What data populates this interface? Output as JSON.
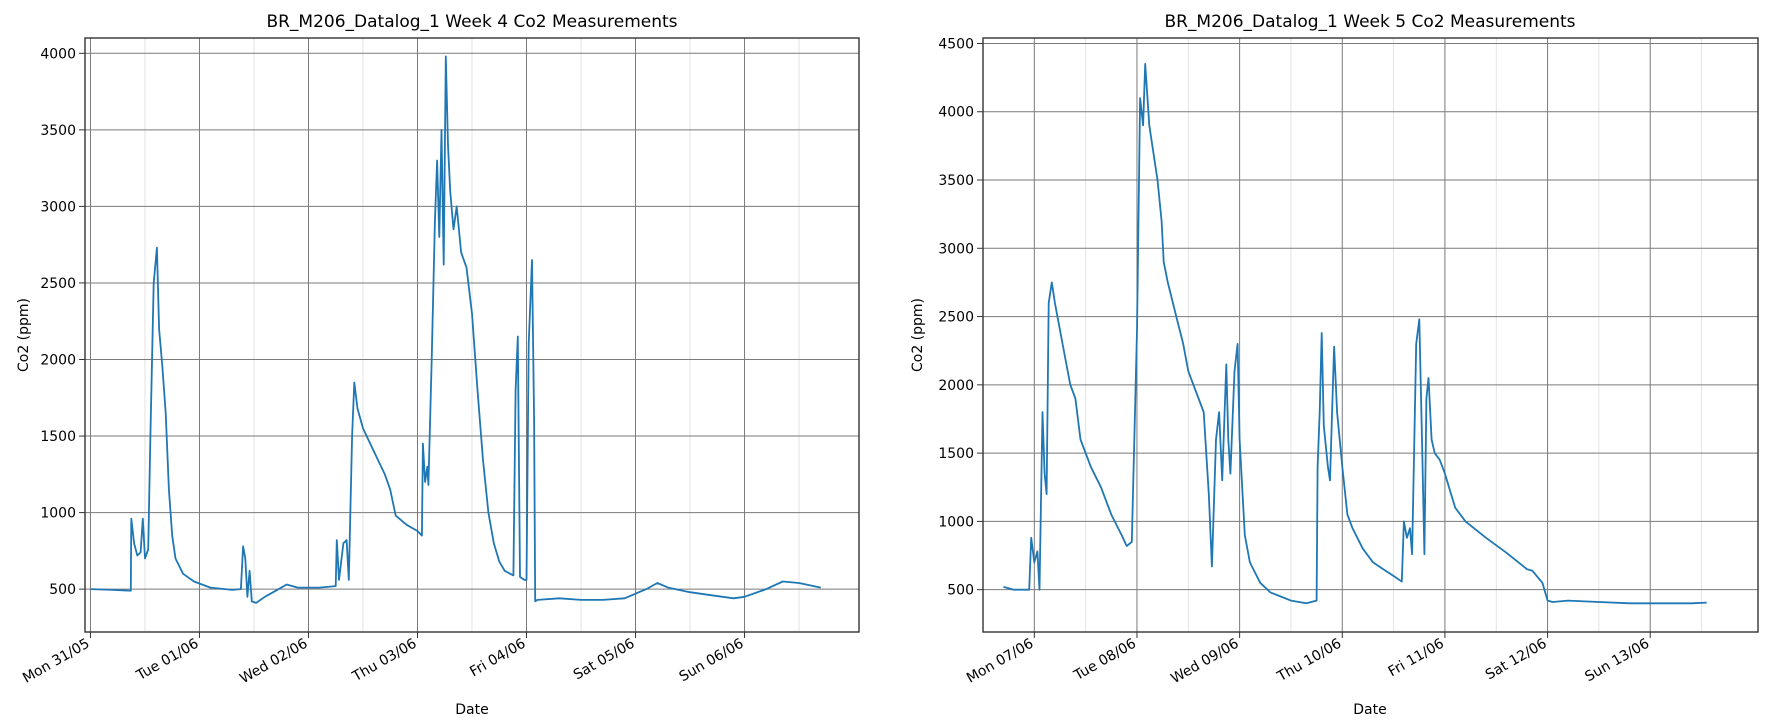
{
  "chart_data": [
    {
      "type": "line",
      "title": "BR_M206_Datalog_1 Week 4 Co2 Measurements",
      "xlabel": "Date",
      "ylabel": "Co2 (ppm)",
      "x_axis": "day index (0 = Mon 31/05 00:00)",
      "xlim": [
        -0.05,
        7.05
      ],
      "ylim": [
        220,
        4100
      ],
      "yticks": [
        500,
        1000,
        1500,
        2000,
        2500,
        3000,
        3500,
        4000
      ],
      "ytick_labels": [
        "500",
        "1000",
        "1500",
        "2000",
        "2500",
        "3000",
        "3500",
        "4000"
      ],
      "xticks": [
        0,
        1,
        2,
        3,
        4,
        5,
        6
      ],
      "xtick_labels": [
        "Mon 31/05",
        "Tue 01/06",
        "Wed 02/06",
        "Thu 03/06",
        "Fri 04/06",
        "Sat 05/06",
        "Sun 06/06"
      ],
      "grid": true,
      "series": [
        {
          "color": "#1f77b4",
          "points": [
            [
              0.0,
              500
            ],
            [
              0.2,
              495
            ],
            [
              0.37,
              490
            ],
            [
              0.375,
              960
            ],
            [
              0.4,
              800
            ],
            [
              0.43,
              720
            ],
            [
              0.46,
              740
            ],
            [
              0.48,
              960
            ],
            [
              0.5,
              700
            ],
            [
              0.53,
              760
            ],
            [
              0.55,
              1500
            ],
            [
              0.58,
              2500
            ],
            [
              0.61,
              2730
            ],
            [
              0.63,
              2200
            ],
            [
              0.66,
              1950
            ],
            [
              0.69,
              1650
            ],
            [
              0.72,
              1150
            ],
            [
              0.75,
              850
            ],
            [
              0.78,
              700
            ],
            [
              0.85,
              600
            ],
            [
              0.95,
              550
            ],
            [
              1.1,
              510
            ],
            [
              1.3,
              495
            ],
            [
              1.38,
              500
            ],
            [
              1.4,
              780
            ],
            [
              1.42,
              700
            ],
            [
              1.44,
              450
            ],
            [
              1.46,
              620
            ],
            [
              1.48,
              420
            ],
            [
              1.52,
              410
            ],
            [
              1.6,
              450
            ],
            [
              1.7,
              490
            ],
            [
              1.8,
              530
            ],
            [
              1.9,
              510
            ],
            [
              2.0,
              510
            ],
            [
              2.1,
              510
            ],
            [
              2.25,
              520
            ],
            [
              2.26,
              820
            ],
            [
              2.28,
              560
            ],
            [
              2.32,
              800
            ],
            [
              2.35,
              820
            ],
            [
              2.37,
              560
            ],
            [
              2.4,
              1500
            ],
            [
              2.42,
              1850
            ],
            [
              2.45,
              1680
            ],
            [
              2.5,
              1550
            ],
            [
              2.6,
              1400
            ],
            [
              2.7,
              1250
            ],
            [
              2.75,
              1150
            ],
            [
              2.8,
              980
            ],
            [
              2.9,
              920
            ],
            [
              3.0,
              880
            ],
            [
              3.04,
              850
            ],
            [
              3.05,
              1450
            ],
            [
              3.07,
              1200
            ],
            [
              3.09,
              1300
            ],
            [
              3.1,
              1180
            ],
            [
              3.13,
              2000
            ],
            [
              3.16,
              2900
            ],
            [
              3.18,
              3300
            ],
            [
              3.2,
              2800
            ],
            [
              3.22,
              3500
            ],
            [
              3.24,
              2620
            ],
            [
              3.26,
              3980
            ],
            [
              3.28,
              3400
            ],
            [
              3.3,
              3100
            ],
            [
              3.33,
              2850
            ],
            [
              3.36,
              3000
            ],
            [
              3.4,
              2700
            ],
            [
              3.45,
              2600
            ],
            [
              3.5,
              2300
            ],
            [
              3.55,
              1800
            ],
            [
              3.6,
              1350
            ],
            [
              3.65,
              1000
            ],
            [
              3.7,
              800
            ],
            [
              3.75,
              680
            ],
            [
              3.8,
              620
            ],
            [
              3.85,
              600
            ],
            [
              3.88,
              590
            ],
            [
              3.9,
              1800
            ],
            [
              3.92,
              2150
            ],
            [
              3.94,
              580
            ],
            [
              3.98,
              560
            ],
            [
              4.0,
              560
            ],
            [
              4.02,
              2100
            ],
            [
              4.05,
              2650
            ],
            [
              4.07,
              1600
            ],
            [
              4.08,
              420
            ],
            [
              4.1,
              430
            ],
            [
              4.3,
              440
            ],
            [
              4.5,
              430
            ],
            [
              4.7,
              430
            ],
            [
              4.9,
              440
            ],
            [
              5.1,
              500
            ],
            [
              5.2,
              540
            ],
            [
              5.3,
              510
            ],
            [
              5.5,
              480
            ],
            [
              5.7,
              460
            ],
            [
              5.9,
              440
            ],
            [
              6.0,
              450
            ],
            [
              6.2,
              500
            ],
            [
              6.35,
              550
            ],
            [
              6.5,
              540
            ],
            [
              6.7,
              510
            ]
          ]
        }
      ]
    },
    {
      "type": "line",
      "title": "BR_M206_Datalog_1 Week 5 Co2 Measurements",
      "xlabel": "Date",
      "ylabel": "Co2 (ppm)",
      "x_axis": "day index (0 = Mon 07/06 00:00)",
      "xlim": [
        -0.5,
        7.05
      ],
      "ylim": [
        190,
        4540
      ],
      "yticks": [
        500,
        1000,
        1500,
        2000,
        2500,
        3000,
        3500,
        4000,
        4500
      ],
      "ytick_labels": [
        "500",
        "1000",
        "1500",
        "2000",
        "2500",
        "3000",
        "3500",
        "4000",
        "4500"
      ],
      "xticks": [
        0,
        1,
        2,
        3,
        4,
        5,
        6
      ],
      "xtick_labels": [
        "Mon 07/06",
        "Tue 08/06",
        "Wed 09/06",
        "Thu 10/06",
        "Fri 11/06",
        "Sat 12/06",
        "Sun 13/06"
      ],
      "grid": true,
      "series": [
        {
          "color": "#1f77b4",
          "points": [
            [
              -0.3,
              520
            ],
            [
              -0.2,
              500
            ],
            [
              -0.05,
              500
            ],
            [
              -0.03,
              880
            ],
            [
              0.0,
              700
            ],
            [
              0.03,
              780
            ],
            [
              0.05,
              500
            ],
            [
              0.08,
              1800
            ],
            [
              0.1,
              1350
            ],
            [
              0.12,
              1200
            ],
            [
              0.14,
              2600
            ],
            [
              0.17,
              2750
            ],
            [
              0.2,
              2600
            ],
            [
              0.25,
              2400
            ],
            [
              0.3,
              2200
            ],
            [
              0.35,
              2000
            ],
            [
              0.4,
              1900
            ],
            [
              0.45,
              1600
            ],
            [
              0.55,
              1400
            ],
            [
              0.65,
              1250
            ],
            [
              0.75,
              1050
            ],
            [
              0.85,
              900
            ],
            [
              0.9,
              820
            ],
            [
              0.95,
              850
            ],
            [
              1.0,
              2400
            ],
            [
              1.03,
              4100
            ],
            [
              1.06,
              3900
            ],
            [
              1.08,
              4350
            ],
            [
              1.12,
              3900
            ],
            [
              1.16,
              3700
            ],
            [
              1.2,
              3500
            ],
            [
              1.24,
              3200
            ],
            [
              1.26,
              2900
            ],
            [
              1.3,
              2750
            ],
            [
              1.35,
              2600
            ],
            [
              1.4,
              2450
            ],
            [
              1.45,
              2300
            ],
            [
              1.5,
              2100
            ],
            [
              1.55,
              2000
            ],
            [
              1.6,
              1900
            ],
            [
              1.65,
              1800
            ],
            [
              1.7,
              1200
            ],
            [
              1.73,
              670
            ],
            [
              1.77,
              1600
            ],
            [
              1.8,
              1800
            ],
            [
              1.83,
              1300
            ],
            [
              1.87,
              2150
            ],
            [
              1.89,
              1600
            ],
            [
              1.91,
              1350
            ],
            [
              1.95,
              2100
            ],
            [
              1.98,
              2300
            ],
            [
              2.0,
              1600
            ],
            [
              2.05,
              900
            ],
            [
              2.1,
              700
            ],
            [
              2.2,
              550
            ],
            [
              2.3,
              480
            ],
            [
              2.4,
              450
            ],
            [
              2.5,
              420
            ],
            [
              2.65,
              400
            ],
            [
              2.75,
              420
            ],
            [
              2.76,
              1400
            ],
            [
              2.78,
              1800
            ],
            [
              2.8,
              2380
            ],
            [
              2.82,
              1700
            ],
            [
              2.86,
              1400
            ],
            [
              2.88,
              1300
            ],
            [
              2.92,
              2280
            ],
            [
              2.95,
              1800
            ],
            [
              3.0,
              1400
            ],
            [
              3.05,
              1050
            ],
            [
              3.1,
              950
            ],
            [
              3.2,
              800
            ],
            [
              3.3,
              700
            ],
            [
              3.4,
              650
            ],
            [
              3.5,
              600
            ],
            [
              3.58,
              560
            ],
            [
              3.6,
              1000
            ],
            [
              3.63,
              880
            ],
            [
              3.66,
              950
            ],
            [
              3.68,
              760
            ],
            [
              3.72,
              2300
            ],
            [
              3.75,
              2480
            ],
            [
              3.78,
              1500
            ],
            [
              3.8,
              760
            ],
            [
              3.82,
              1900
            ],
            [
              3.84,
              2050
            ],
            [
              3.87,
              1600
            ],
            [
              3.9,
              1500
            ],
            [
              3.95,
              1450
            ],
            [
              4.0,
              1350
            ],
            [
              4.1,
              1100
            ],
            [
              4.2,
              1000
            ],
            [
              4.4,
              880
            ],
            [
              4.6,
              770
            ],
            [
              4.8,
              650
            ],
            [
              4.85,
              640
            ],
            [
              4.95,
              550
            ],
            [
              5.0,
              420
            ],
            [
              5.05,
              410
            ],
            [
              5.2,
              420
            ],
            [
              5.5,
              410
            ],
            [
              5.8,
              400
            ],
            [
              6.1,
              400
            ],
            [
              6.4,
              400
            ],
            [
              6.55,
              405
            ]
          ]
        }
      ]
    }
  ]
}
